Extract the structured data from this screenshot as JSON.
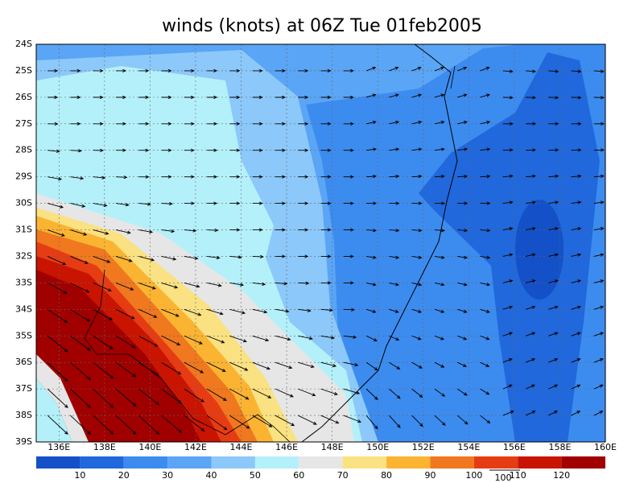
{
  "title": "winds (knots) at 06Z Tue 01feb2005",
  "lat_labels": [
    "24S",
    "25S",
    "26S",
    "27S",
    "28S",
    "29S",
    "30S",
    "31S",
    "32S",
    "33S",
    "34S",
    "35S",
    "36S",
    "37S",
    "38S",
    "39S"
  ],
  "lon_labels": [
    "136E",
    "138E",
    "140E",
    "142E",
    "144E",
    "146E",
    "148E",
    "150E",
    "152E",
    "154E",
    "156E",
    "158E",
    "160E"
  ],
  "colorbar": {
    "labels": [
      "10",
      "20",
      "30",
      "40",
      "50",
      "60",
      "70",
      "80",
      "90",
      "100",
      "110",
      "120"
    ],
    "colors": [
      "#1450c8",
      "#2068dc",
      "#3c8cf0",
      "#5aa5f5",
      "#8cc8fa",
      "#b4f0fa",
      "#e6e6e6",
      "#fae182",
      "#fab432",
      "#f0781e",
      "#e63c14",
      "#c81400",
      "#a00000"
    ]
  },
  "reference_vector": "100"
}
